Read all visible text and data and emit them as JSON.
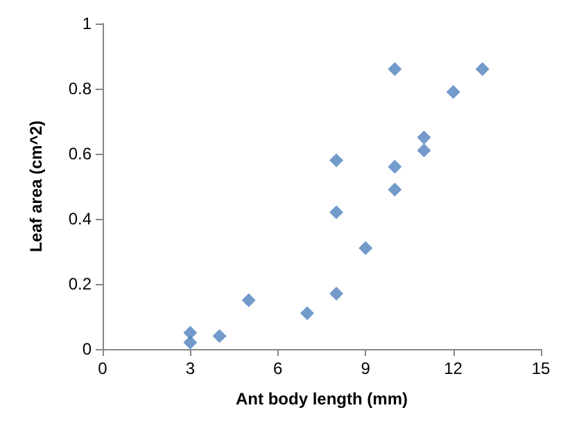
{
  "chart_data": {
    "type": "scatter",
    "xlabel": "Ant body length (mm)",
    "ylabel": "Leaf area (cm^2)",
    "x": [
      3,
      3,
      4,
      5,
      7,
      8,
      8,
      8,
      9,
      10,
      10,
      10,
      11,
      11,
      12,
      13
    ],
    "values": [
      0.05,
      0.02,
      0.04,
      0.15,
      0.11,
      0.17,
      0.42,
      0.58,
      0.31,
      0.49,
      0.56,
      0.86,
      0.61,
      0.65,
      0.79,
      0.86
    ],
    "color": "#4f81bd",
    "marker": "diamond",
    "xlim": [
      0,
      15
    ],
    "xticks": [
      0,
      3,
      6,
      9,
      12,
      15
    ],
    "ylim": [
      0,
      1
    ],
    "yticks": [
      0,
      0.2,
      0.4,
      0.6,
      0.8,
      1
    ],
    "grid": false
  }
}
